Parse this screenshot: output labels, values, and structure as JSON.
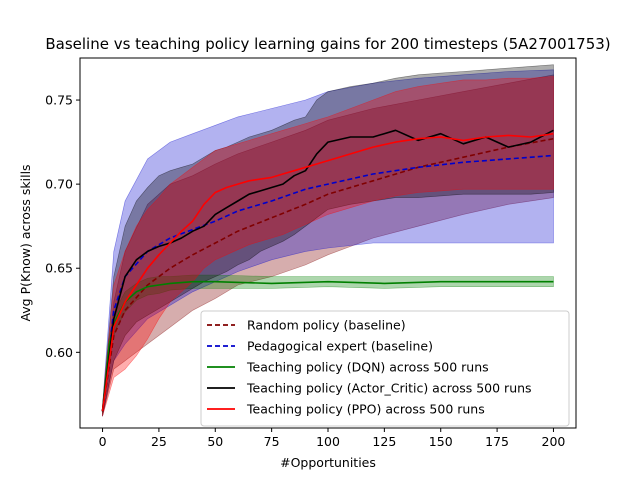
{
  "chart_data": {
    "type": "line",
    "title": "Baseline vs teaching policy learning gains for 200 timesteps (5A27001753)",
    "xlabel": "#Opportunities",
    "ylabel": "Avg P(Know) across skills",
    "xlim": [
      -10,
      210
    ],
    "ylim": [
      0.555,
      0.775
    ],
    "xticks": [
      0,
      25,
      50,
      75,
      100,
      125,
      150,
      175,
      200
    ],
    "xtick_labels": [
      "0",
      "25",
      "50",
      "75",
      "100",
      "125",
      "150",
      "175",
      "200"
    ],
    "yticks": [
      0.6,
      0.65,
      0.7,
      0.75
    ],
    "ytick_labels": [
      "0.60",
      "0.65",
      "0.70",
      "0.75"
    ],
    "grid": false,
    "legend_position": "lower-right",
    "series": [
      {
        "name": "Random policy (baseline)",
        "color": "#800000",
        "dash": "dashed",
        "x": [
          0,
          5,
          10,
          20,
          30,
          40,
          50,
          60,
          75,
          90,
          100,
          120,
          140,
          160,
          180,
          200
        ],
        "y": [
          0.565,
          0.61,
          0.625,
          0.64,
          0.65,
          0.658,
          0.665,
          0.672,
          0.68,
          0.688,
          0.694,
          0.702,
          0.71,
          0.716,
          0.722,
          0.727
        ],
        "band_upper": [
          0.568,
          0.63,
          0.66,
          0.688,
          0.7,
          0.705,
          0.712,
          0.718,
          0.725,
          0.732,
          0.738,
          0.745,
          0.75,
          0.755,
          0.76,
          0.765
        ],
        "band_lower": [
          0.562,
          0.59,
          0.595,
          0.605,
          0.615,
          0.625,
          0.632,
          0.64,
          0.645,
          0.652,
          0.658,
          0.668,
          0.675,
          0.682,
          0.688,
          0.692
        ]
      },
      {
        "name": "Pedagogical expert (baseline)",
        "color": "#0000cc",
        "dash": "dashed",
        "x": [
          0,
          5,
          10,
          20,
          30,
          40,
          50,
          60,
          75,
          90,
          100,
          120,
          140,
          160,
          180,
          200
        ],
        "y": [
          0.565,
          0.625,
          0.645,
          0.66,
          0.668,
          0.673,
          0.678,
          0.684,
          0.69,
          0.697,
          0.7,
          0.706,
          0.71,
          0.713,
          0.715,
          0.717
        ],
        "band_upper": [
          0.568,
          0.66,
          0.69,
          0.715,
          0.725,
          0.73,
          0.735,
          0.74,
          0.745,
          0.75,
          0.755,
          0.76,
          0.763,
          0.765,
          0.767,
          0.768
        ],
        "band_lower": [
          0.562,
          0.595,
          0.605,
          0.62,
          0.628,
          0.636,
          0.642,
          0.648,
          0.655,
          0.66,
          0.662,
          0.665,
          0.665,
          0.665,
          0.665,
          0.665
        ]
      },
      {
        "name": "Teaching policy (DQN) across 500 runs",
        "color": "#008000",
        "dash": "solid",
        "x": [
          0,
          3,
          6,
          10,
          15,
          20,
          25,
          30,
          40,
          50,
          75,
          100,
          125,
          150,
          175,
          200
        ],
        "y": [
          0.565,
          0.605,
          0.62,
          0.63,
          0.636,
          0.639,
          0.64,
          0.641,
          0.642,
          0.642,
          0.641,
          0.642,
          0.641,
          0.642,
          0.642,
          0.642
        ],
        "band_upper": [
          0.567,
          0.61,
          0.626,
          0.636,
          0.641,
          0.644,
          0.645,
          0.645,
          0.646,
          0.646,
          0.645,
          0.645,
          0.645,
          0.645,
          0.645,
          0.645
        ],
        "band_lower": [
          0.563,
          0.6,
          0.614,
          0.624,
          0.631,
          0.634,
          0.635,
          0.637,
          0.638,
          0.638,
          0.638,
          0.639,
          0.638,
          0.639,
          0.639,
          0.639
        ]
      },
      {
        "name": "Teaching policy (Actor_Critic) across 500 runs",
        "color": "#000000",
        "dash": "solid",
        "x": [
          0,
          5,
          10,
          15,
          20,
          25,
          30,
          35,
          40,
          45,
          50,
          55,
          60,
          65,
          70,
          75,
          80,
          85,
          90,
          95,
          100,
          110,
          120,
          130,
          140,
          150,
          160,
          170,
          180,
          190,
          200
        ],
        "y": [
          0.565,
          0.62,
          0.645,
          0.655,
          0.66,
          0.663,
          0.665,
          0.668,
          0.672,
          0.675,
          0.682,
          0.686,
          0.69,
          0.694,
          0.696,
          0.698,
          0.7,
          0.705,
          0.708,
          0.718,
          0.725,
          0.728,
          0.728,
          0.732,
          0.726,
          0.73,
          0.724,
          0.728,
          0.722,
          0.725,
          0.732
        ],
        "band_upper": [
          0.568,
          0.645,
          0.675,
          0.69,
          0.698,
          0.705,
          0.708,
          0.71,
          0.712,
          0.716,
          0.72,
          0.722,
          0.725,
          0.728,
          0.73,
          0.732,
          0.735,
          0.738,
          0.74,
          0.75,
          0.755,
          0.758,
          0.76,
          0.763,
          0.765,
          0.766,
          0.767,
          0.768,
          0.769,
          0.77,
          0.771
        ],
        "band_lower": [
          0.562,
          0.595,
          0.61,
          0.618,
          0.622,
          0.626,
          0.63,
          0.634,
          0.638,
          0.642,
          0.645,
          0.648,
          0.652,
          0.655,
          0.66,
          0.663,
          0.666,
          0.67,
          0.675,
          0.68,
          0.685,
          0.688,
          0.69,
          0.692,
          0.692,
          0.693,
          0.694,
          0.694,
          0.694,
          0.694,
          0.695
        ]
      },
      {
        "name": "Teaching policy (PPO) across 500 runs",
        "color": "#ff0000",
        "dash": "solid",
        "x": [
          0,
          5,
          10,
          15,
          20,
          25,
          30,
          35,
          40,
          45,
          50,
          55,
          60,
          65,
          70,
          75,
          80,
          85,
          90,
          95,
          100,
          110,
          120,
          130,
          140,
          150,
          160,
          170,
          180,
          190,
          200
        ],
        "y": [
          0.565,
          0.615,
          0.63,
          0.64,
          0.65,
          0.658,
          0.665,
          0.672,
          0.678,
          0.688,
          0.695,
          0.698,
          0.7,
          0.702,
          0.703,
          0.704,
          0.706,
          0.708,
          0.71,
          0.712,
          0.714,
          0.718,
          0.722,
          0.725,
          0.727,
          0.728,
          0.726,
          0.728,
          0.729,
          0.728,
          0.73
        ],
        "band_upper": [
          0.568,
          0.64,
          0.66,
          0.675,
          0.685,
          0.692,
          0.7,
          0.705,
          0.71,
          0.715,
          0.72,
          0.722,
          0.724,
          0.726,
          0.728,
          0.73,
          0.732,
          0.734,
          0.736,
          0.738,
          0.74,
          0.745,
          0.75,
          0.755,
          0.758,
          0.76,
          0.762,
          0.762,
          0.763,
          0.763,
          0.764
        ],
        "band_lower": [
          0.562,
          0.585,
          0.59,
          0.598,
          0.608,
          0.62,
          0.63,
          0.636,
          0.642,
          0.65,
          0.655,
          0.658,
          0.661,
          0.664,
          0.666,
          0.668,
          0.67,
          0.673,
          0.676,
          0.679,
          0.682,
          0.686,
          0.69,
          0.693,
          0.695,
          0.696,
          0.697,
          0.697,
          0.697,
          0.697,
          0.697
        ]
      }
    ]
  }
}
